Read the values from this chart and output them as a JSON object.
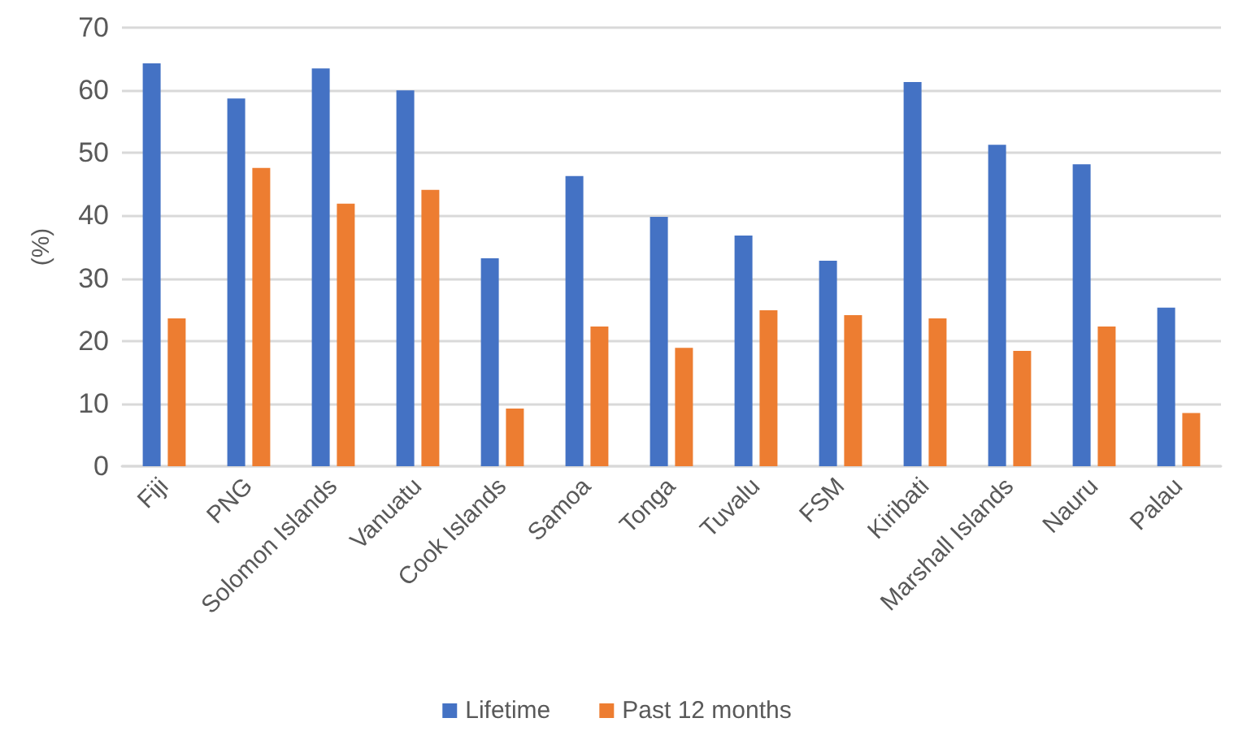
{
  "chart_data": {
    "type": "bar",
    "ylabel": "(%)",
    "categories": [
      "Fiji",
      "PNG",
      "Solomon Islands",
      "Vanuatu",
      "Cook Islands",
      "Samoa",
      "Tonga",
      "Tuvalu",
      "FSM",
      "Kiribati",
      "Marshall Islands",
      "Nauru",
      "Palau"
    ],
    "series": [
      {
        "name": "Lifetime",
        "color": "#4472c4",
        "values": [
          64.3,
          58.7,
          63.5,
          60.0,
          33.2,
          46.3,
          39.8,
          36.8,
          32.8,
          61.3,
          51.3,
          48.2,
          25.3
        ]
      },
      {
        "name": "Past 12 months",
        "color": "#ed7d31",
        "values": [
          23.6,
          47.6,
          41.9,
          44.1,
          9.2,
          22.3,
          18.9,
          24.9,
          24.1,
          23.6,
          18.4,
          22.3,
          8.5
        ]
      }
    ],
    "ylim": [
      0,
      70
    ],
    "yticks": [
      0,
      10,
      20,
      30,
      40,
      50,
      60,
      70
    ],
    "grid": "y",
    "legend": "bottom"
  }
}
